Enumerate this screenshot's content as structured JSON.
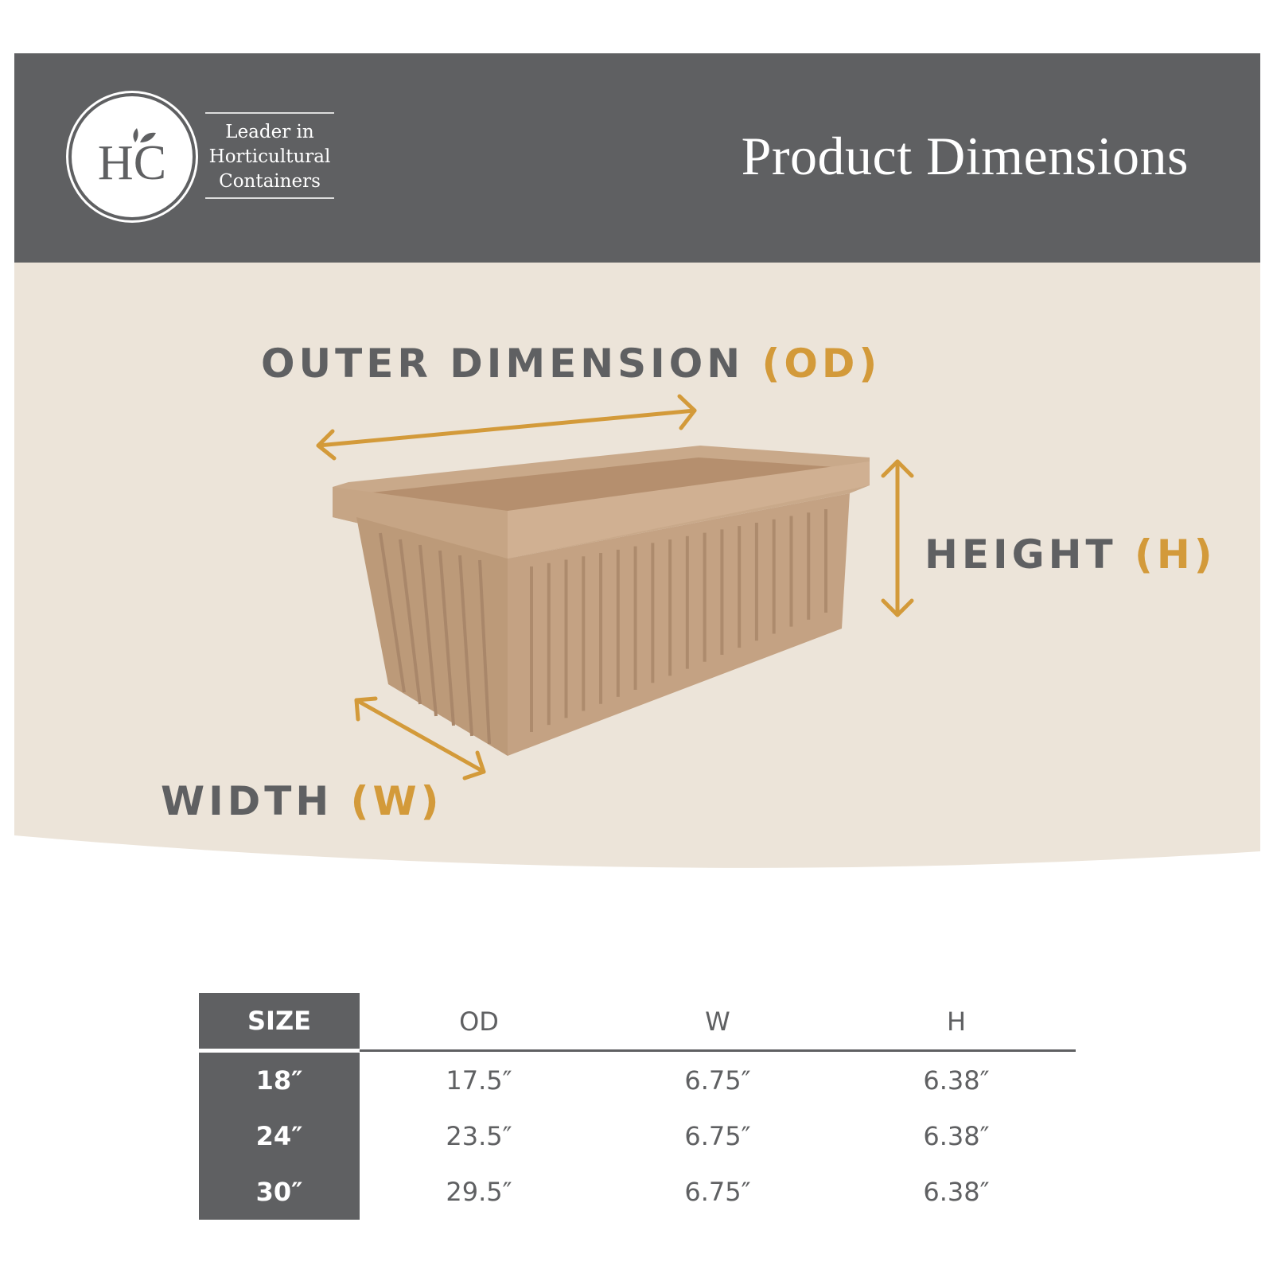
{
  "header": {
    "logo_letters": "HC",
    "tagline": [
      "Leader in",
      "Horticultural",
      "Containers"
    ],
    "title": "Product Dimensions",
    "background": "#5f6062"
  },
  "diagram": {
    "od_label": "OUTER DIMENSION",
    "od_abbr": "(OD)",
    "height_label": "HEIGHT",
    "height_abbr": "(H)",
    "width_label": "WIDTH",
    "width_abbr": "(W)",
    "accent": "#d39a3a",
    "band_color": "#ece4d9",
    "planter_color": "#c19e7e"
  },
  "table": {
    "headers": [
      "SIZE",
      "OD",
      "W",
      "H"
    ],
    "rows": [
      [
        "18″",
        "17.5″",
        "6.75″",
        "6.38″"
      ],
      [
        "24″",
        "23.5″",
        "6.75″",
        "6.38″"
      ],
      [
        "30″",
        "29.5″",
        "6.75″",
        "6.38″"
      ]
    ]
  }
}
